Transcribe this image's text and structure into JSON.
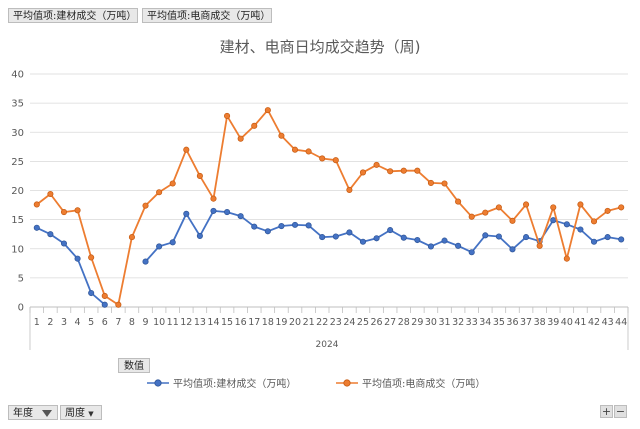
{
  "filters": {
    "top_field_1": "平均值项:建材成交（万吨）",
    "top_field_2": "平均值项:电商成交（万吨）",
    "values_field": "数值",
    "axis_field_1": "年度",
    "axis_field_2": "周度",
    "zoom_in": "+",
    "zoom_out": "−"
  },
  "colors": {
    "series1": "#4472c4",
    "series2": "#ed7d31",
    "grid": "#d9d9d9"
  },
  "icons": {
    "filter": "filter-icon",
    "dropdown": "chevron-down-icon"
  },
  "chart_data": {
    "type": "line",
    "title": "建材、电商日均成交趋势（周)",
    "x_group_label": "2024",
    "categories": [
      "1",
      "2",
      "3",
      "4",
      "5",
      "6",
      "7",
      "8",
      "9",
      "10",
      "11",
      "12",
      "13",
      "14",
      "15",
      "16",
      "17",
      "18",
      "19",
      "20",
      "21",
      "22",
      "23",
      "24",
      "25",
      "26",
      "27",
      "28",
      "29",
      "30",
      "31",
      "32",
      "33",
      "34",
      "35",
      "36",
      "37",
      "38",
      "39",
      "40",
      "41",
      "42",
      "43",
      "44"
    ],
    "ylim": [
      0,
      40
    ],
    "yticks": [
      0,
      5,
      10,
      15,
      20,
      25,
      30,
      35,
      40
    ],
    "grid": true,
    "legend_position": "bottom",
    "series": [
      {
        "name": "平均值项:建材成交（万吨）",
        "values": [
          13.6,
          12.5,
          10.9,
          8.3,
          2.4,
          0.4,
          null,
          null,
          7.8,
          10.4,
          11.1,
          16.0,
          12.2,
          16.5,
          16.3,
          15.6,
          13.8,
          13.0,
          13.9,
          14.1,
          14.0,
          12.0,
          12.1,
          12.8,
          11.2,
          11.8,
          13.2,
          11.9,
          11.5,
          10.4,
          11.4,
          10.5,
          9.4,
          12.3,
          12.1,
          9.9,
          12.0,
          11.3,
          14.9,
          14.2,
          13.3,
          11.2,
          12.0,
          11.6
        ]
      },
      {
        "name": "平均值项:电商成交（万吨）",
        "values": [
          17.6,
          19.4,
          16.3,
          16.6,
          8.5,
          1.9,
          0.4,
          12.0,
          17.4,
          19.7,
          21.2,
          27.0,
          22.5,
          18.6,
          32.8,
          28.9,
          31.1,
          33.8,
          29.4,
          27.0,
          26.7,
          25.5,
          25.2,
          20.1,
          23.1,
          24.4,
          23.3,
          23.4,
          23.4,
          21.3,
          21.2,
          18.1,
          15.5,
          16.2,
          17.1,
          14.8,
          17.6,
          10.5,
          17.1,
          8.3,
          17.6,
          14.7,
          16.5,
          17.1
        ]
      }
    ]
  }
}
